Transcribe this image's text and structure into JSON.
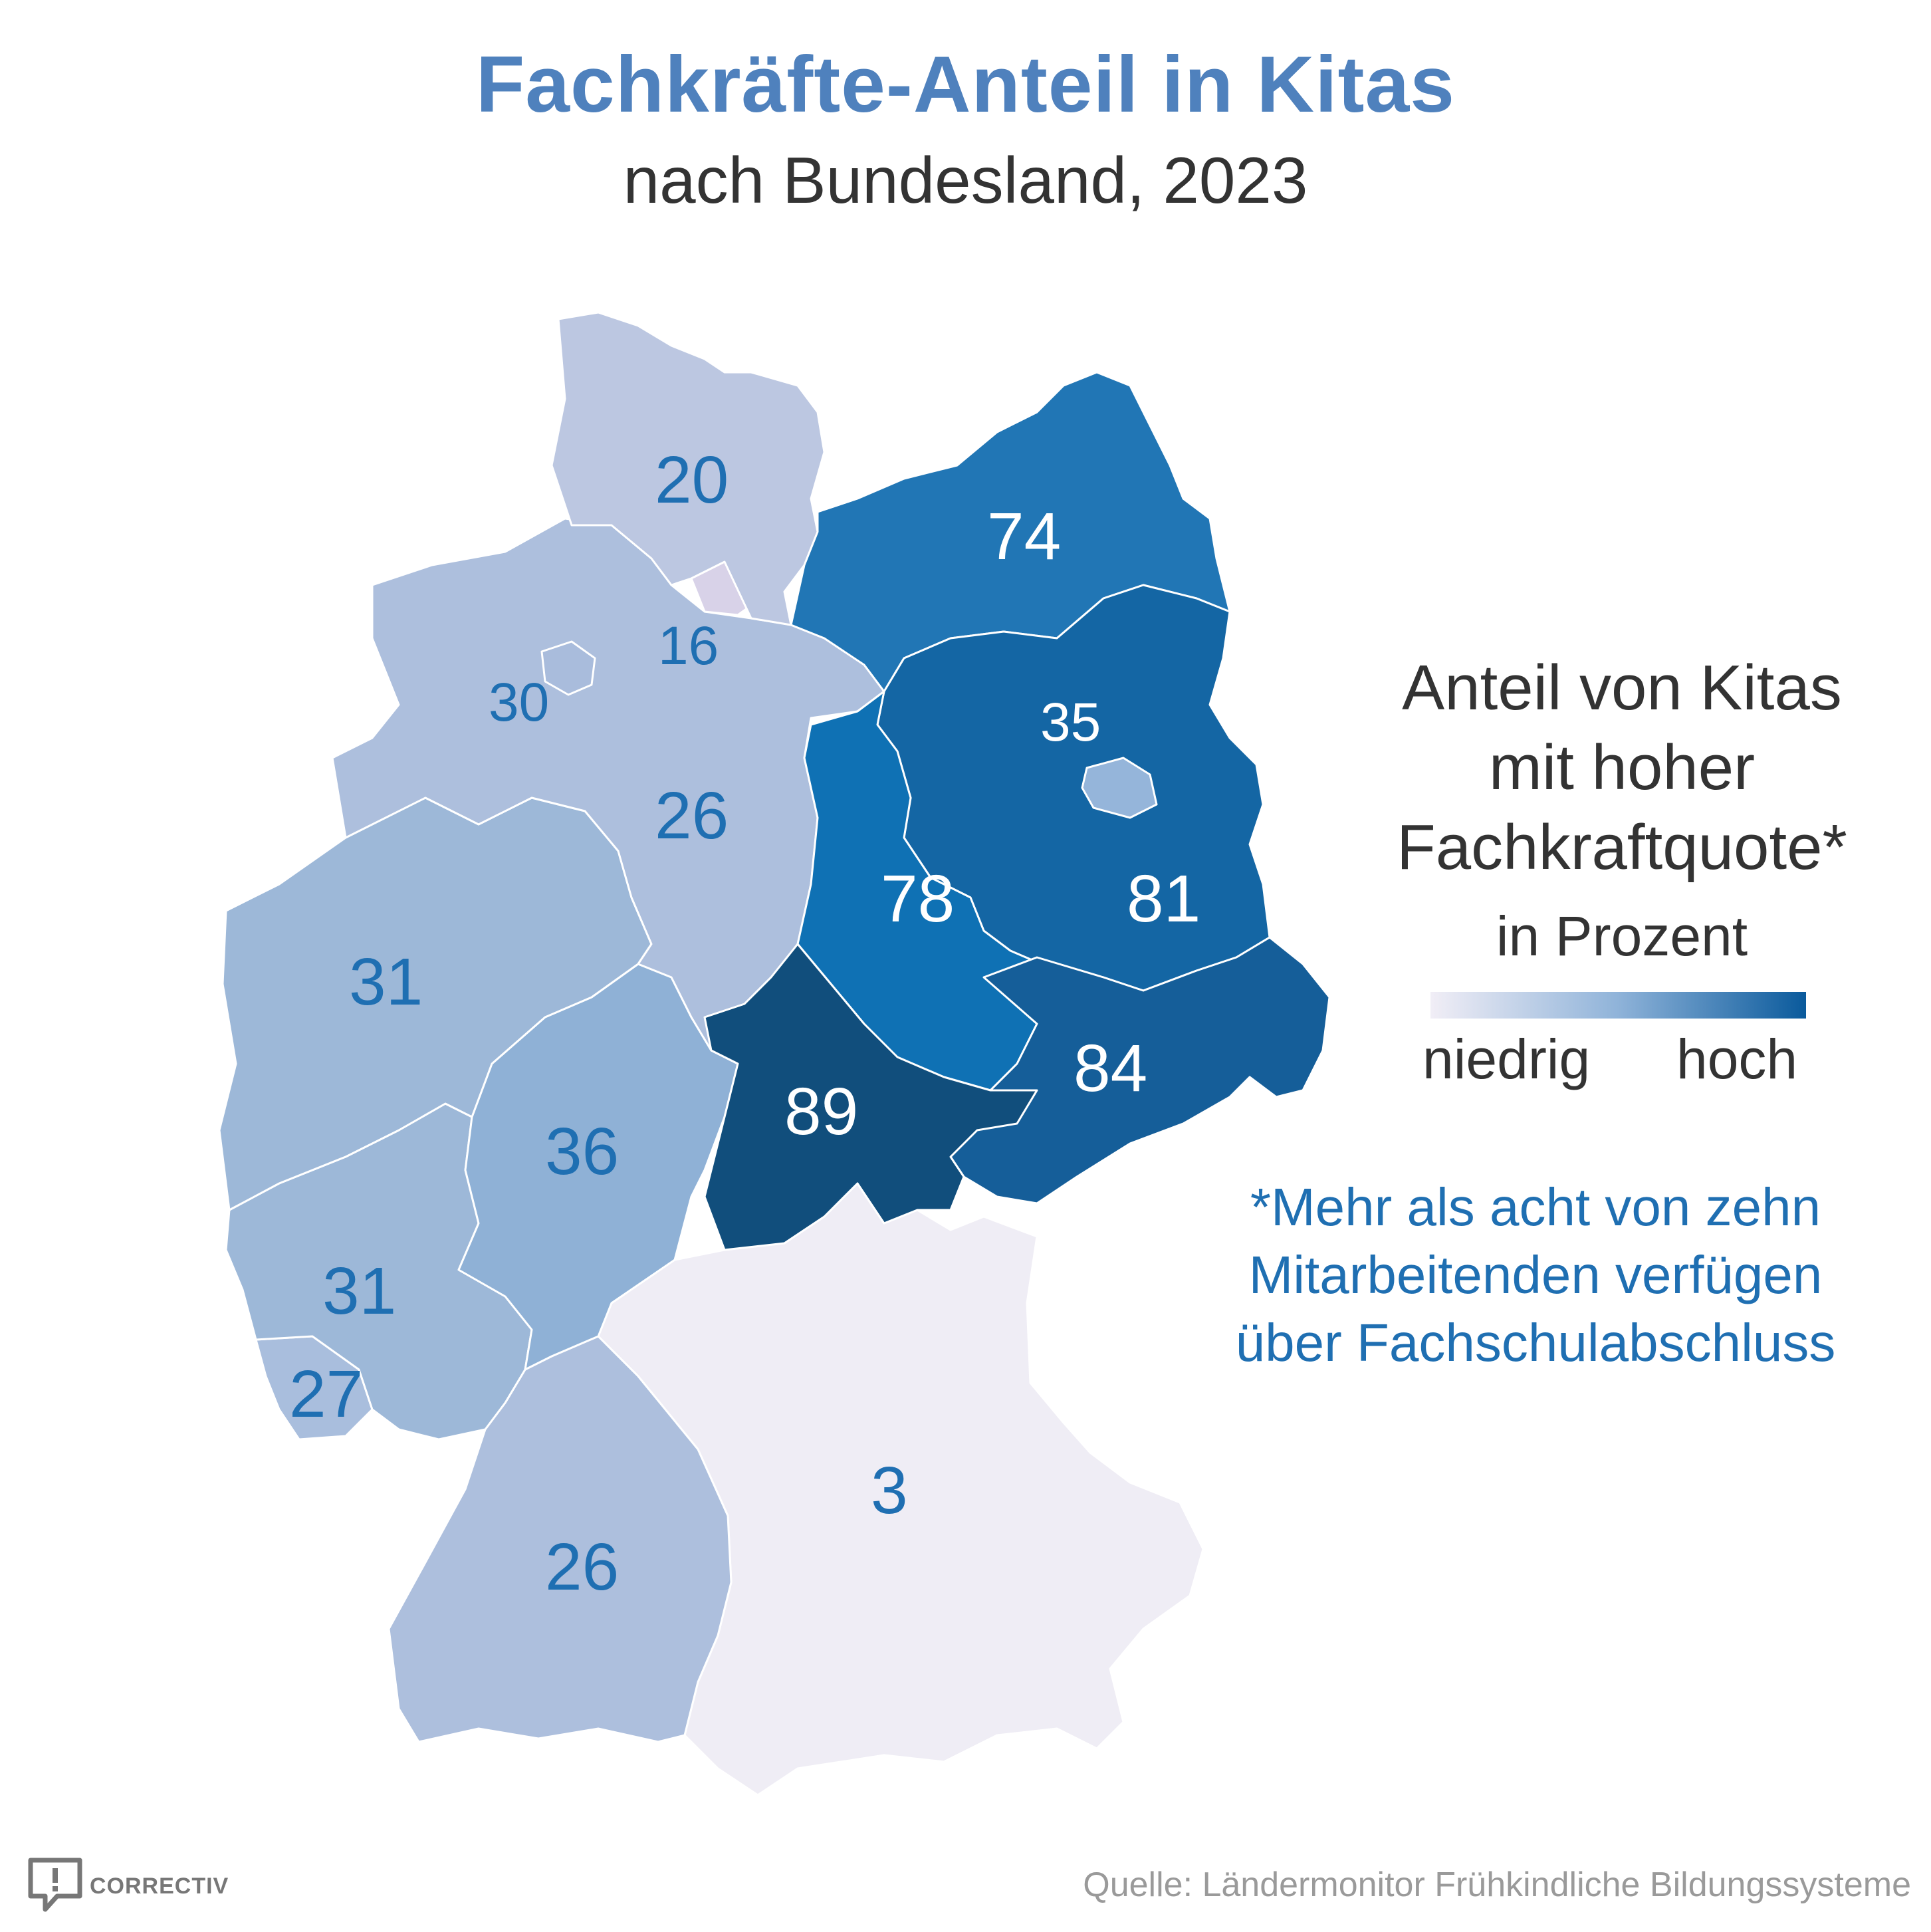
{
  "title": "Fachkräfte-Anteil in Kitas",
  "subtitle": "nach Bundesland, 2023",
  "legend": {
    "title_lines": [
      "Anteil von Kitas",
      "mit hoher",
      "Fachkraftquote*"
    ],
    "unit": "in Prozent",
    "low": "niedrig",
    "high": "hoch",
    "color_low": "#f1eef6",
    "color_high": "#0a5a9c"
  },
  "footnote_lines": [
    "*Mehr als acht von zehn",
    "Mitarbeitenden verfügen",
    "über Fachschulabschluss"
  ],
  "source": "Quelle: Ländermonitor Frühkindliche Bildungssysteme",
  "logo_text": "CORRECTIV",
  "regions": [
    {
      "id": "schleswig-holstein",
      "value": 20,
      "label": "20",
      "color": "#bcc7e1"
    },
    {
      "id": "hamburg",
      "value": 16,
      "label": "16",
      "color": "#d8d2e8"
    },
    {
      "id": "bremen",
      "value": 30,
      "label": "30",
      "color": "#a9bcdc"
    },
    {
      "id": "niedersachsen",
      "value": 26,
      "label": "26",
      "color": "#adbfdd"
    },
    {
      "id": "mecklenburg-vorpommern",
      "value": 74,
      "label": "74",
      "color": "#2176b5"
    },
    {
      "id": "brandenburg",
      "value": 81,
      "label": "81",
      "color": "#1466a4"
    },
    {
      "id": "berlin",
      "value": 35,
      "label": "35",
      "color": "#95b5da"
    },
    {
      "id": "sachsen-anhalt",
      "value": 78,
      "label": "78",
      "color": "#0f71b4"
    },
    {
      "id": "sachsen",
      "value": 84,
      "label": "84",
      "color": "#155e99"
    },
    {
      "id": "thueringen",
      "value": 89,
      "label": "89",
      "color": "#114e7c"
    },
    {
      "id": "nordrhein-westfalen",
      "value": 31,
      "label": "31",
      "color": "#9db8d8"
    },
    {
      "id": "hessen",
      "value": 36,
      "label": "36",
      "color": "#8fb1d6"
    },
    {
      "id": "rheinland-pfalz",
      "value": 31,
      "label": "31",
      "color": "#9db8d8"
    },
    {
      "id": "saarland",
      "value": 27,
      "label": "27",
      "color": "#a9bedd"
    },
    {
      "id": "baden-wuerttemberg",
      "value": 26,
      "label": "26",
      "color": "#adbfdd"
    },
    {
      "id": "bayern",
      "value": 3,
      "label": "3",
      "color": "#efedf5"
    }
  ]
}
